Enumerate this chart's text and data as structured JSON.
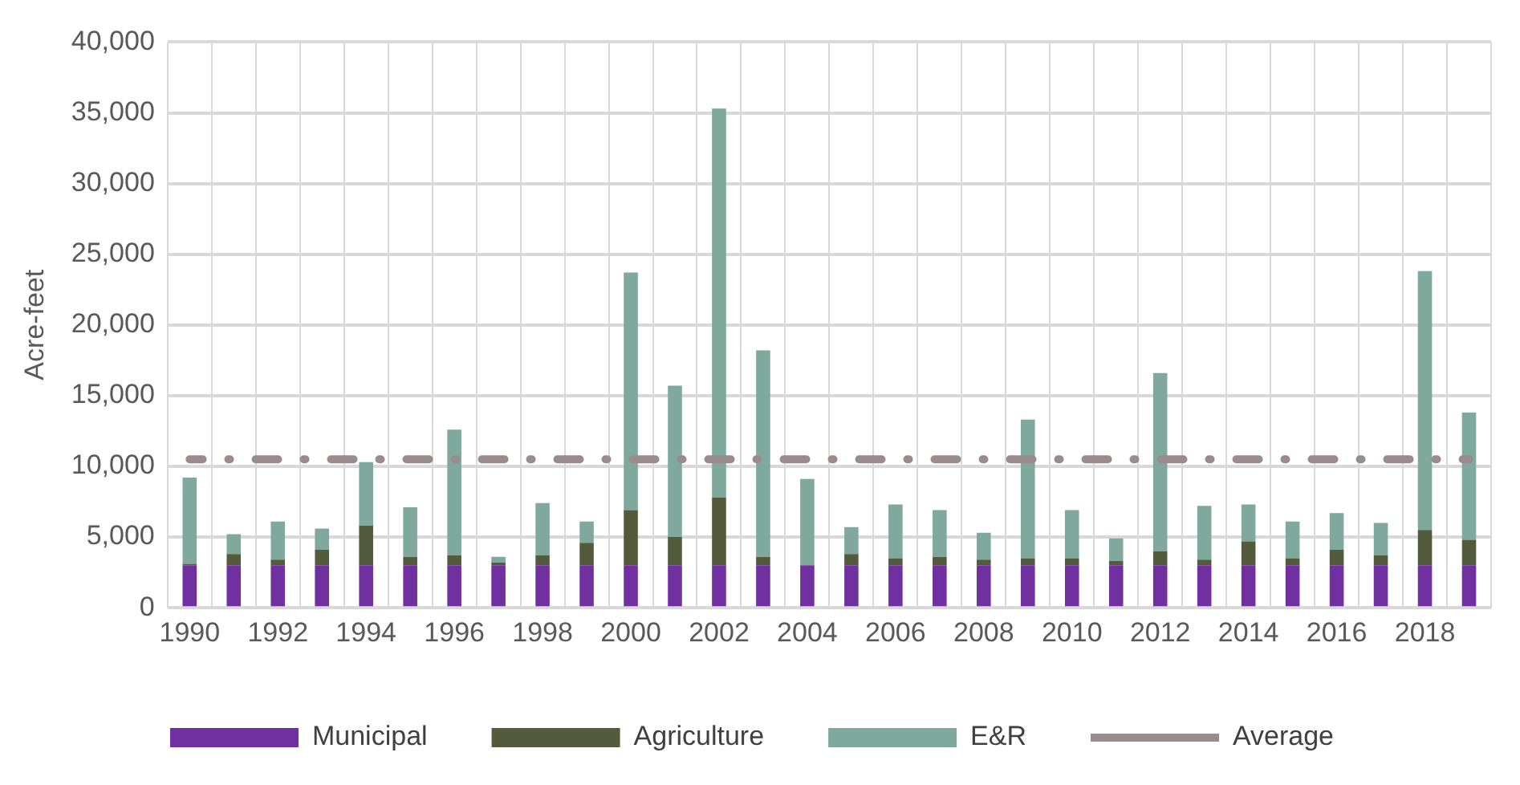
{
  "chart_data": {
    "type": "bar",
    "stacked": true,
    "ylabel": "Acre-feet",
    "categories": [
      "1990",
      null,
      "1992",
      null,
      "1994",
      null,
      "1996",
      null,
      "1998",
      null,
      "2000",
      null,
      "2002",
      null,
      "2004",
      null,
      "2006",
      null,
      "2008",
      null,
      "2010",
      null,
      "2012",
      null,
      "2014",
      null,
      "2016",
      null,
      "2018",
      null
    ],
    "series": [
      {
        "name": "Municipal",
        "color": "#7030a0",
        "values": [
          3000,
          3000,
          3000,
          3000,
          3000,
          3000,
          3000,
          3000,
          3000,
          3000,
          3000,
          3000,
          3000,
          3000,
          3000,
          3000,
          3000,
          3000,
          3000,
          3000,
          3000,
          3000,
          3000,
          3000,
          3000,
          3000,
          3000,
          3000,
          3000,
          3000
        ]
      },
      {
        "name": "Agriculture",
        "color": "#545a3c",
        "values": [
          100,
          800,
          400,
          1100,
          2800,
          600,
          700,
          200,
          700,
          1600,
          3900,
          2000,
          4800,
          600,
          0,
          800,
          500,
          600,
          400,
          500,
          500,
          300,
          1000,
          400,
          1700,
          500,
          1100,
          700,
          2500,
          1800
        ]
      },
      {
        "name": "E&R",
        "color": "#7ea99c",
        "values": [
          6100,
          1400,
          2700,
          1500,
          4500,
          3500,
          8900,
          400,
          3700,
          1500,
          16800,
          10700,
          27500,
          14600,
          6100,
          1900,
          3800,
          3300,
          1900,
          9800,
          3400,
          1600,
          12600,
          3800,
          2600,
          2600,
          2600,
          2300,
          18300,
          9000
        ]
      },
      {
        "name": "Average",
        "type": "line",
        "line_style": "dashed",
        "color": "#9a8c8c",
        "values": [
          10500,
          10500,
          10500,
          10500,
          10500,
          10500,
          10500,
          10500,
          10500,
          10500,
          10500,
          10500,
          10500,
          10500,
          10500,
          10500,
          10500,
          10500,
          10500,
          10500,
          10500,
          10500,
          10500,
          10500,
          10500,
          10500,
          10500,
          10500,
          10500,
          10500
        ]
      }
    ],
    "ylim": [
      0,
      40000
    ],
    "yticks": [
      0,
      {
        "value": 5000,
        "label": "5,000"
      },
      {
        "value": 10000,
        "label": "10,000"
      },
      {
        "value": 15000,
        "label": "15,000"
      },
      {
        "value": 20000,
        "label": "20,000"
      },
      {
        "value": 25000,
        "label": "25,000"
      },
      {
        "value": 30000,
        "label": "30,000"
      },
      {
        "value": 35000,
        "label": "35,000"
      },
      {
        "value": 40000,
        "label": "40,000"
      }
    ],
    "grid": true,
    "legend": "bottom"
  }
}
